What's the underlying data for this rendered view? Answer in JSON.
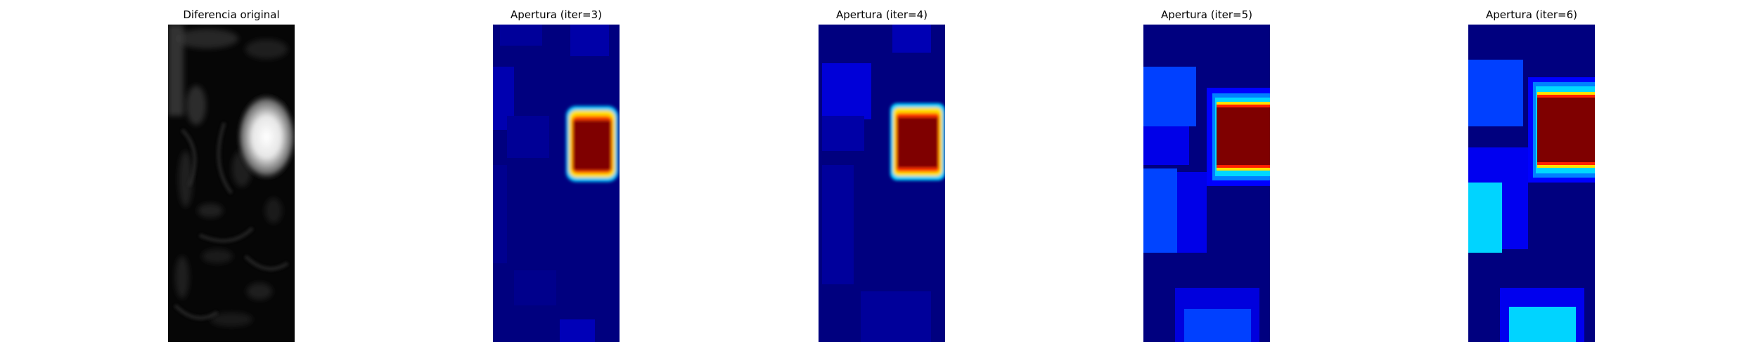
{
  "figure": {
    "panels": [
      {
        "title": "Diferencia original",
        "colormap": "gray"
      },
      {
        "title": "Apertura (iter=3)",
        "colormap": "jet"
      },
      {
        "title": "Apertura (iter=4)",
        "colormap": "jet"
      },
      {
        "title": "Apertura (iter=5)",
        "colormap": "jet"
      },
      {
        "title": "Apertura (iter=6)",
        "colormap": "jet"
      }
    ]
  },
  "colors": {
    "jet_dark_blue": "#00007f",
    "jet_blue": "#0000ff",
    "jet_mid_blue": "#0040ff",
    "jet_cyan": "#00d4ff",
    "jet_dark_red": "#7f0000"
  }
}
